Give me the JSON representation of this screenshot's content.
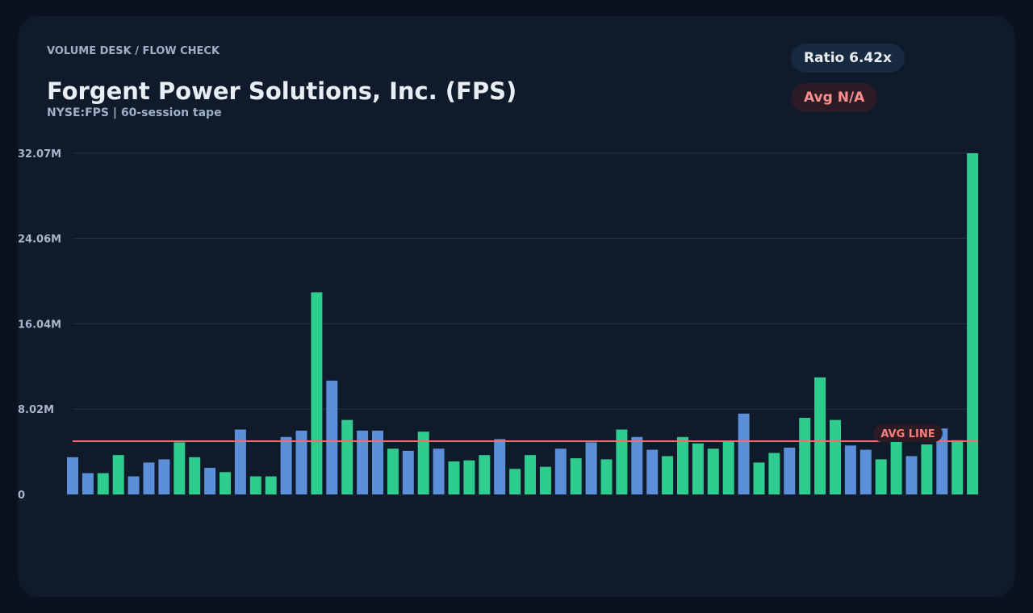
{
  "header": {
    "breadcrumb": "VOLUME DESK / FLOW CHECK",
    "title": "Forgent Power Solutions, Inc. (FPS)",
    "subtitle": "NYSE:FPS | 60-session tape"
  },
  "badges": {
    "ratio": "Ratio 6.42x",
    "avg": "Avg N/A"
  },
  "colors": {
    "up": "#2ecc8f",
    "down": "#5b8fd9",
    "avg_line": "#ff6b6b",
    "grid": "#24324a"
  },
  "chart_data": {
    "type": "bar",
    "title": "",
    "xlabel": "",
    "ylabel": "",
    "y_unit": "M",
    "ylim": [
      0,
      32.07
    ],
    "yticks": [
      0,
      8.02,
      16.04,
      24.06,
      32.07
    ],
    "ytick_labels": [
      "0",
      "8.02M",
      "16.04M",
      "24.06M",
      "32.07M"
    ],
    "avg_line": {
      "label": "AVG LINE",
      "value": 5.0
    },
    "grid": true,
    "legend": "none",
    "series": [
      {
        "values": [
          3.5,
          2.0,
          2.0,
          3.7,
          1.7,
          3.0,
          3.3,
          4.9,
          3.5,
          2.5,
          2.1,
          6.1,
          1.7,
          1.7,
          5.4,
          6.0,
          19.0,
          10.7,
          7.0,
          6.0,
          6.0,
          4.3,
          4.1,
          5.9,
          4.3,
          3.1,
          3.2,
          3.7,
          5.2,
          2.4,
          3.7,
          2.6,
          4.3,
          3.4,
          4.9,
          3.3,
          6.1,
          5.4,
          4.2,
          3.6,
          5.4,
          4.8,
          4.3,
          5.0,
          7.6,
          3.0,
          3.9,
          4.4,
          7.2,
          11.0,
          7.0,
          4.6,
          4.2,
          3.3,
          5.1,
          3.6,
          4.7,
          6.2,
          5.1,
          32.07
        ],
        "directions": [
          "down",
          "down",
          "up",
          "up",
          "down",
          "down",
          "down",
          "up",
          "up",
          "down",
          "up",
          "down",
          "up",
          "up",
          "down",
          "down",
          "up",
          "down",
          "up",
          "down",
          "down",
          "up",
          "down",
          "up",
          "down",
          "up",
          "up",
          "up",
          "down",
          "up",
          "up",
          "up",
          "down",
          "up",
          "down",
          "up",
          "up",
          "down",
          "down",
          "up",
          "up",
          "up",
          "up",
          "up",
          "down",
          "up",
          "up",
          "down",
          "up",
          "up",
          "up",
          "down",
          "down",
          "up",
          "up",
          "down",
          "up",
          "down",
          "up",
          "up"
        ]
      }
    ]
  }
}
